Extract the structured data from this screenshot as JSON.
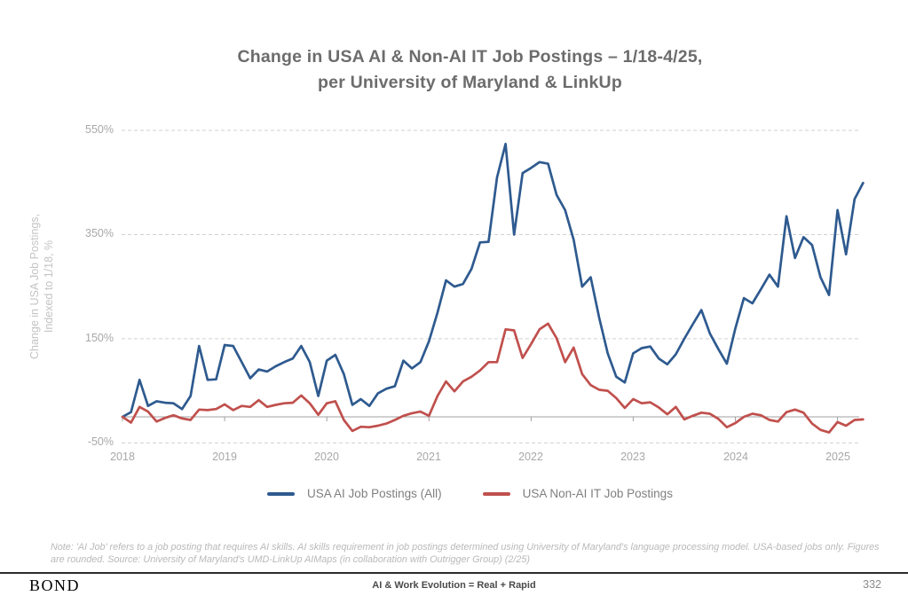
{
  "title": {
    "line1": "Change in USA AI & Non-AI IT Job Postings – 1/18-4/25,",
    "line2": "per University of Maryland & LinkUp"
  },
  "y_axis": {
    "title_line1": "Change in USA Job Postings,",
    "title_line2": "Indexed to 1/18, %",
    "ticks": [
      {
        "label": "550%",
        "value": 550
      },
      {
        "label": "350%",
        "value": 350
      },
      {
        "label": "150%",
        "value": 150
      },
      {
        "label": "-50%",
        "value": -50
      }
    ]
  },
  "x_axis": {
    "ticks": [
      {
        "label": "2018",
        "month": 0
      },
      {
        "label": "2019",
        "month": 12
      },
      {
        "label": "2020",
        "month": 24
      },
      {
        "label": "2021",
        "month": 36
      },
      {
        "label": "2022",
        "month": 48
      },
      {
        "label": "2023",
        "month": 60
      },
      {
        "label": "2024",
        "month": 72
      },
      {
        "label": "2025",
        "month": 84
      }
    ]
  },
  "footnote": "Note: 'AI Job' refers to a job posting that requires AI skills. AI skills requirement in job postings determined using University of Maryland's language processing model. USA-based jobs only. Figures are rounded. Source: University of Maryland's UMD-LinkUp AIMaps (in collaboration with Outrigger Group) (2/25)",
  "footer": {
    "logo": "BOND",
    "center": "AI & Work Evolution = Real + Rapid",
    "page": "332"
  },
  "chart_data": {
    "type": "line",
    "title": "Change in USA AI & Non-AI IT Job Postings – 1/18-4/25, per University of Maryland & LinkUp",
    "ylabel": "Change in USA Job Postings, Indexed to 1/18, %",
    "x_unit": "month",
    "x_start": "2018-01",
    "x_end": "2025-04",
    "ylim": [
      -50,
      550
    ],
    "y_gridlines": [
      550,
      350,
      150,
      -50
    ],
    "zero_baseline": true,
    "grid": "dashed-horizontal",
    "legend_position": "bottom-center",
    "series": [
      {
        "name": "USA AI Job Postings (All)",
        "color": "#2E5A8F",
        "values": [
          0,
          9,
          71,
          21,
          30,
          27,
          26,
          15,
          40,
          136,
          71,
          72,
          138,
          136,
          105,
          74,
          91,
          87,
          97,
          105,
          112,
          136,
          105,
          40,
          108,
          119,
          82,
          23,
          34,
          21,
          45,
          54,
          59,
          108,
          93,
          105,
          145,
          200,
          262,
          250,
          255,
          284,
          335,
          336,
          460,
          524,
          350,
          468,
          478,
          489,
          486,
          426,
          397,
          340,
          250,
          268,
          190,
          122,
          77,
          66,
          122,
          132,
          135,
          112,
          101,
          120,
          150,
          178,
          205,
          160,
          130,
          102,
          170,
          228,
          218,
          245,
          273,
          250,
          385,
          305,
          345,
          330,
          268,
          234,
          397,
          312,
          418,
          449
        ]
      },
      {
        "name": "USA Non-AI IT Job Postings",
        "color": "#C0504D",
        "values": [
          0,
          -11,
          19,
          10,
          -9,
          -2,
          3,
          -3,
          -6,
          14,
          13,
          15,
          24,
          13,
          21,
          19,
          32,
          19,
          23,
          26,
          27,
          41,
          26,
          4,
          26,
          30,
          -6,
          -27,
          -19,
          -20,
          -17,
          -13,
          -6,
          2,
          7,
          10,
          2,
          40,
          68,
          49,
          68,
          77,
          89,
          105,
          105,
          168,
          166,
          113,
          140,
          168,
          179,
          151,
          105,
          133,
          82,
          61,
          52,
          50,
          36,
          17,
          34,
          26,
          28,
          18,
          5,
          19,
          -5,
          2,
          8,
          6,
          -4,
          -20,
          -12,
          0,
          6,
          3,
          -6,
          -9,
          9,
          14,
          8,
          -13,
          -25,
          -30,
          -10,
          -17,
          -6,
          -5
        ]
      }
    ]
  }
}
